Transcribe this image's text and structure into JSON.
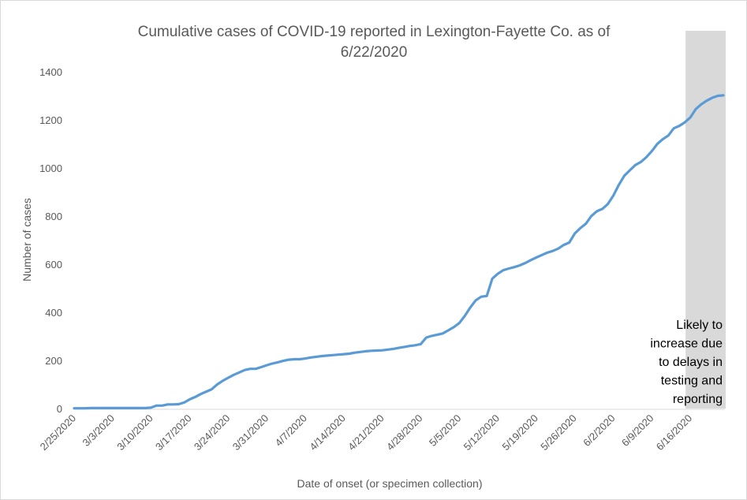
{
  "chart_data": {
    "type": "line",
    "title_lines": [
      "Cumulative cases of COVID-19 reported in Lexington-Fayette Co.  as of",
      "6/22/2020"
    ],
    "xlabel": "Date of onset (or specimen collection)",
    "ylabel": "Number of cases",
    "ylim": [
      0,
      1400
    ],
    "yticks": [
      0,
      200,
      400,
      600,
      800,
      1000,
      1200,
      1400
    ],
    "x_range": [
      "2/25/2020",
      "6/22/2020"
    ],
    "x_tick_labels": [
      "2/25/2020",
      "3/3/2020",
      "3/10/2020",
      "3/17/2020",
      "3/24/2020",
      "3/31/2020",
      "4/7/2020",
      "4/14/2020",
      "4/21/2020",
      "4/28/2020",
      "5/5/2020",
      "5/12/2020",
      "5/19/2020",
      "5/26/2020",
      "6/2/2020",
      "6/9/2020",
      "6/16/2020"
    ],
    "grid": false,
    "line_color": "#5b9bd5",
    "shade_color": "#d9d9d9",
    "shaded_region": {
      "from": "6/16/2020",
      "to": "6/22/2020",
      "note_lines": [
        "Likely to",
        "increase due",
        "to delays in",
        "testing and",
        "reporting"
      ]
    },
    "series": [
      {
        "x": [
          "2/25/2020",
          "2/26/2020",
          "2/27/2020",
          "2/28/2020",
          "2/29/2020",
          "3/1/2020",
          "3/2/2020",
          "3/3/2020",
          "3/4/2020",
          "3/5/2020",
          "3/6/2020",
          "3/7/2020",
          "3/8/2020",
          "3/9/2020",
          "3/10/2020",
          "3/11/2020",
          "3/12/2020",
          "3/13/2020",
          "3/14/2020",
          "3/15/2020",
          "3/16/2020",
          "3/17/2020",
          "3/18/2020",
          "3/19/2020",
          "3/20/2020",
          "3/21/2020",
          "3/22/2020",
          "3/23/2020",
          "3/24/2020",
          "3/25/2020",
          "3/26/2020",
          "3/27/2020",
          "3/28/2020",
          "3/29/2020",
          "3/30/2020",
          "3/31/2020",
          "4/1/2020",
          "4/2/2020",
          "4/3/2020",
          "4/4/2020",
          "4/5/2020",
          "4/6/2020",
          "4/7/2020",
          "4/8/2020",
          "4/9/2020",
          "4/10/2020",
          "4/11/2020",
          "4/12/2020",
          "4/13/2020",
          "4/14/2020",
          "4/15/2020",
          "4/16/2020",
          "4/17/2020",
          "4/18/2020",
          "4/19/2020",
          "4/20/2020",
          "4/21/2020",
          "4/22/2020",
          "4/23/2020",
          "4/24/2020",
          "4/25/2020",
          "4/26/2020",
          "4/27/2020",
          "4/28/2020",
          "4/29/2020",
          "4/30/2020",
          "5/1/2020",
          "5/2/2020",
          "5/3/2020",
          "5/4/2020",
          "5/5/2020",
          "5/6/2020",
          "5/7/2020",
          "5/8/2020",
          "5/9/2020",
          "5/10/2020",
          "5/11/2020",
          "5/12/2020",
          "5/13/2020",
          "5/14/2020",
          "5/15/2020",
          "5/16/2020",
          "5/17/2020",
          "5/18/2020",
          "5/19/2020",
          "5/20/2020",
          "5/21/2020",
          "5/22/2020",
          "5/23/2020",
          "5/24/2020",
          "5/25/2020",
          "5/26/2020",
          "5/27/2020",
          "5/28/2020",
          "5/29/2020",
          "5/30/2020",
          "5/31/2020",
          "6/1/2020",
          "6/2/2020",
          "6/3/2020",
          "6/4/2020",
          "6/5/2020",
          "6/6/2020",
          "6/7/2020",
          "6/8/2020",
          "6/9/2020",
          "6/10/2020",
          "6/11/2020",
          "6/12/2020",
          "6/13/2020",
          "6/14/2020",
          "6/15/2020",
          "6/16/2020",
          "6/17/2020",
          "6/18/2020",
          "6/19/2020",
          "6/20/2020",
          "6/21/2020",
          "6/22/2020"
        ],
        "y": [
          1,
          1,
          1,
          2,
          2,
          2,
          2,
          2,
          2,
          2,
          2,
          2,
          2,
          2,
          4,
          12,
          12,
          17,
          17,
          18,
          25,
          38,
          48,
          60,
          70,
          80,
          100,
          115,
          128,
          140,
          150,
          160,
          165,
          165,
          172,
          180,
          187,
          192,
          198,
          203,
          205,
          205,
          208,
          212,
          215,
          218,
          220,
          222,
          224,
          226,
          228,
          232,
          235,
          238,
          240,
          241,
          242,
          245,
          248,
          252,
          256,
          260,
          263,
          268,
          295,
          302,
          307,
          312,
          325,
          338,
          355,
          385,
          420,
          450,
          465,
          468,
          540,
          560,
          575,
          582,
          588,
          595,
          605,
          617,
          628,
          638,
          648,
          655,
          665,
          680,
          690,
          728,
          750,
          768,
          800,
          820,
          830,
          850,
          885,
          930,
          968,
          990,
          1012,
          1025,
          1045,
          1070,
          1100,
          1120,
          1135,
          1165,
          1175,
          1190,
          1210,
          1245,
          1265,
          1280,
          1292,
          1300,
          1302
        ]
      }
    ]
  }
}
